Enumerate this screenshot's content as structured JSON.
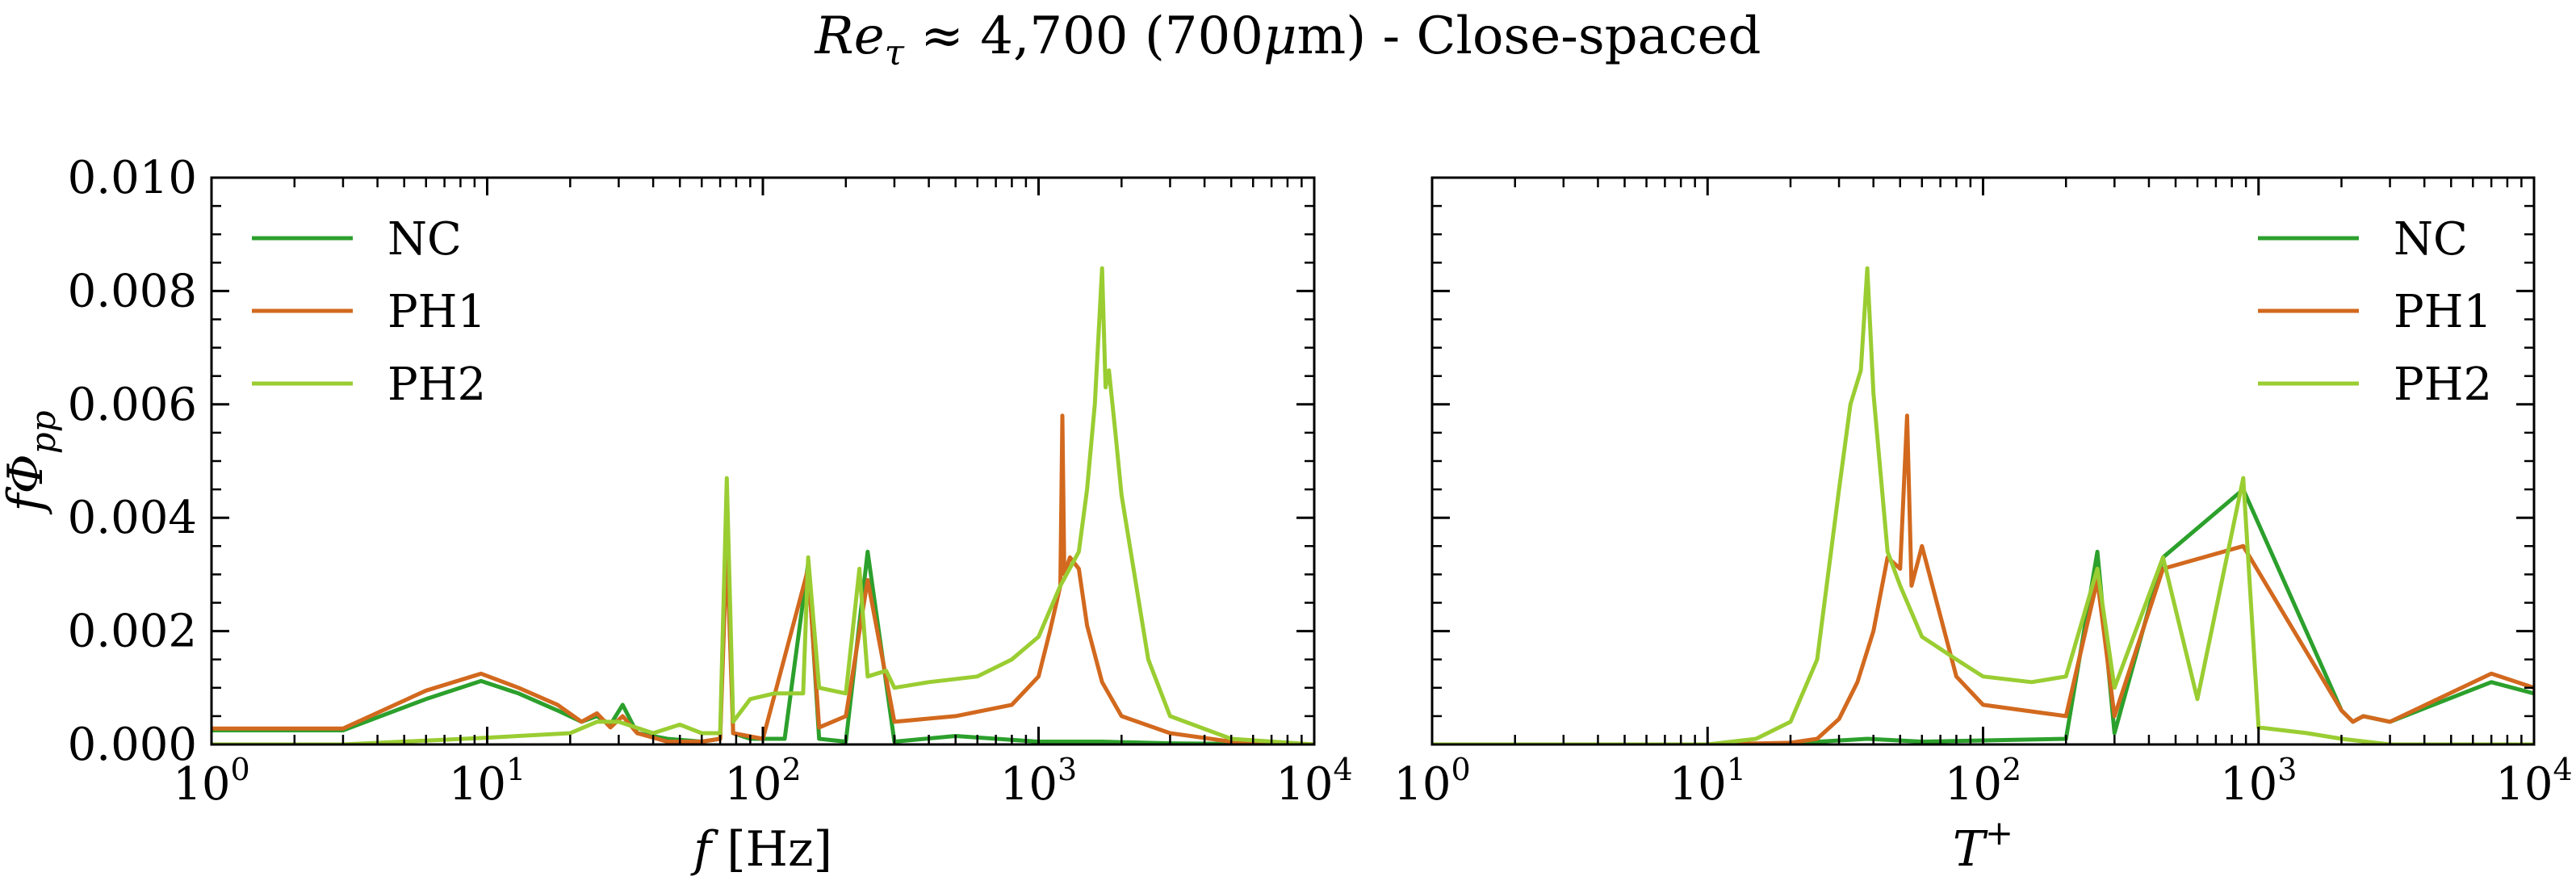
{
  "figure": {
    "title_parts": {
      "re": "Re",
      "tau": "τ",
      "rest": " ≈ 4,700 (700",
      "mu": "μ",
      "tail": "m) - Close-spaced"
    }
  },
  "colors": {
    "NC": "#2ca02c",
    "PH1": "#d2691e",
    "PH2": "#9acd32"
  },
  "chart_data": [
    {
      "type": "line",
      "xscale": "log",
      "xlabel": "f [Hz]",
      "ylabel": "fΦpp",
      "xlim": [
        1,
        10000
      ],
      "ylim": [
        0,
        0.01
      ],
      "yticks": [
        "0.000",
        "0.002",
        "0.004",
        "0.006",
        "0.008",
        "0.010"
      ],
      "xticks": [
        {
          "base": "10",
          "exp": "0"
        },
        {
          "base": "10",
          "exp": "1"
        },
        {
          "base": "10",
          "exp": "2"
        },
        {
          "base": "10",
          "exp": "3"
        },
        {
          "base": "10",
          "exp": "4"
        }
      ],
      "legend_position": "upper-left",
      "series": [
        {
          "name": "NC",
          "x": [
            1,
            3,
            6,
            9.5,
            13,
            18,
            22,
            25,
            28,
            31,
            35,
            45,
            60,
            70,
            74,
            78,
            90,
            120,
            146,
            160,
            200,
            240,
            300,
            500,
            1000,
            1700,
            3000,
            10000
          ],
          "y": [
            0.00025,
            0.00025,
            0.0008,
            0.00112,
            0.0009,
            0.0006,
            0.0004,
            0.0005,
            0.00035,
            0.0007,
            0.0002,
            0.0001,
            5e-05,
            0.0001,
            0.0045,
            0.0002,
            0.0001,
            0.0001,
            0.0032,
            0.0001,
            5e-05,
            0.0034,
            5e-05,
            0.00015,
            5e-05,
            5e-05,
            2e-05,
            0.0
          ]
        },
        {
          "name": "PH1",
          "x": [
            1,
            3,
            6,
            9.5,
            13,
            18,
            22,
            25,
            28,
            31,
            35,
            45,
            60,
            70,
            74,
            78,
            100,
            146,
            160,
            200,
            240,
            300,
            500,
            800,
            1000,
            1100,
            1200,
            1220,
            1240,
            1300,
            1400,
            1500,
            1700,
            2000,
            3000,
            5000,
            10000
          ],
          "y": [
            0.00028,
            0.00028,
            0.00095,
            0.00125,
            0.001,
            0.0007,
            0.0004,
            0.00055,
            0.0003,
            0.0005,
            0.0002,
            5e-05,
            5e-05,
            0.0001,
            0.0035,
            0.0002,
            0.0001,
            0.0031,
            0.0003,
            0.0005,
            0.0029,
            0.0004,
            0.0005,
            0.0007,
            0.0012,
            0.002,
            0.0028,
            0.0058,
            0.003,
            0.0033,
            0.0031,
            0.0021,
            0.0011,
            0.0005,
            0.0002,
            5e-05,
            0.0
          ]
        },
        {
          "name": "PH2",
          "x": [
            1,
            3,
            10,
            20,
            25,
            30,
            40,
            50,
            60,
            70,
            74,
            78,
            90,
            110,
            140,
            146,
            160,
            200,
            224,
            240,
            280,
            300,
            400,
            600,
            800,
            1000,
            1200,
            1400,
            1500,
            1600,
            1700,
            1750,
            1800,
            1900,
            2000,
            2500,
            3000,
            5000,
            10000
          ],
          "y": [
            0.0,
            0.0,
            0.00012,
            0.0002,
            0.0004,
            0.0004,
            0.0002,
            0.00035,
            0.0002,
            0.0002,
            0.0047,
            0.0004,
            0.0008,
            0.0009,
            0.0009,
            0.0033,
            0.001,
            0.0009,
            0.0031,
            0.0012,
            0.0013,
            0.001,
            0.0011,
            0.0012,
            0.0015,
            0.0019,
            0.0028,
            0.0034,
            0.0045,
            0.006,
            0.0084,
            0.0063,
            0.0066,
            0.0055,
            0.0044,
            0.0015,
            0.0005,
            0.0001,
            0.0
          ]
        }
      ]
    },
    {
      "type": "line",
      "xscale": "log",
      "xlabel": "T+",
      "ylabel": "",
      "xlim": [
        1,
        10000
      ],
      "ylim": [
        0,
        0.01
      ],
      "yticks": [],
      "xticks": [
        {
          "base": "10",
          "exp": "0"
        },
        {
          "base": "10",
          "exp": "1"
        },
        {
          "base": "10",
          "exp": "2"
        },
        {
          "base": "10",
          "exp": "3"
        },
        {
          "base": "10",
          "exp": "4"
        }
      ],
      "legend_position": "upper-right",
      "series": [
        {
          "name": "NC",
          "x": [
            1,
            10,
            20,
            38,
            60,
            200,
            260,
            300,
            450,
            880,
            2000,
            2200,
            2400,
            3000,
            7000,
            10000
          ],
          "y": [
            0.0,
            0.0,
            2e-05,
            0.0001,
            5e-05,
            0.0001,
            0.0034,
            0.0002,
            0.0033,
            0.0045,
            0.0006,
            0.0004,
            0.0005,
            0.0004,
            0.0011,
            0.0009
          ]
        },
        {
          "name": "PH1",
          "x": [
            1,
            10,
            20,
            25,
            30,
            35,
            40,
            45,
            50,
            53,
            55,
            60,
            80,
            100,
            200,
            260,
            300,
            450,
            880,
            2000,
            2200,
            2400,
            3000,
            7000,
            10000
          ],
          "y": [
            0.0,
            0.0,
            3e-05,
            0.0001,
            0.00045,
            0.0011,
            0.002,
            0.0033,
            0.0031,
            0.0058,
            0.0028,
            0.0035,
            0.0012,
            0.0007,
            0.0005,
            0.0029,
            0.0005,
            0.0031,
            0.0035,
            0.0006,
            0.0004,
            0.0005,
            0.0004,
            0.00125,
            0.001
          ]
        },
        {
          "name": "PH2",
          "x": [
            1,
            10,
            15,
            20,
            25,
            30,
            33,
            36,
            38,
            40,
            45,
            50,
            60,
            80,
            100,
            150,
            200,
            260,
            300,
            450,
            600,
            880,
            1000,
            1500,
            2000,
            3000,
            10000
          ],
          "y": [
            0.0,
            0.0,
            0.0001,
            0.0004,
            0.0015,
            0.0045,
            0.006,
            0.0066,
            0.0084,
            0.0062,
            0.0034,
            0.0028,
            0.0019,
            0.0015,
            0.0012,
            0.0011,
            0.0012,
            0.0031,
            0.001,
            0.0033,
            0.0008,
            0.0047,
            0.0003,
            0.0002,
            0.0001,
            0.0,
            0.0
          ]
        }
      ]
    }
  ]
}
